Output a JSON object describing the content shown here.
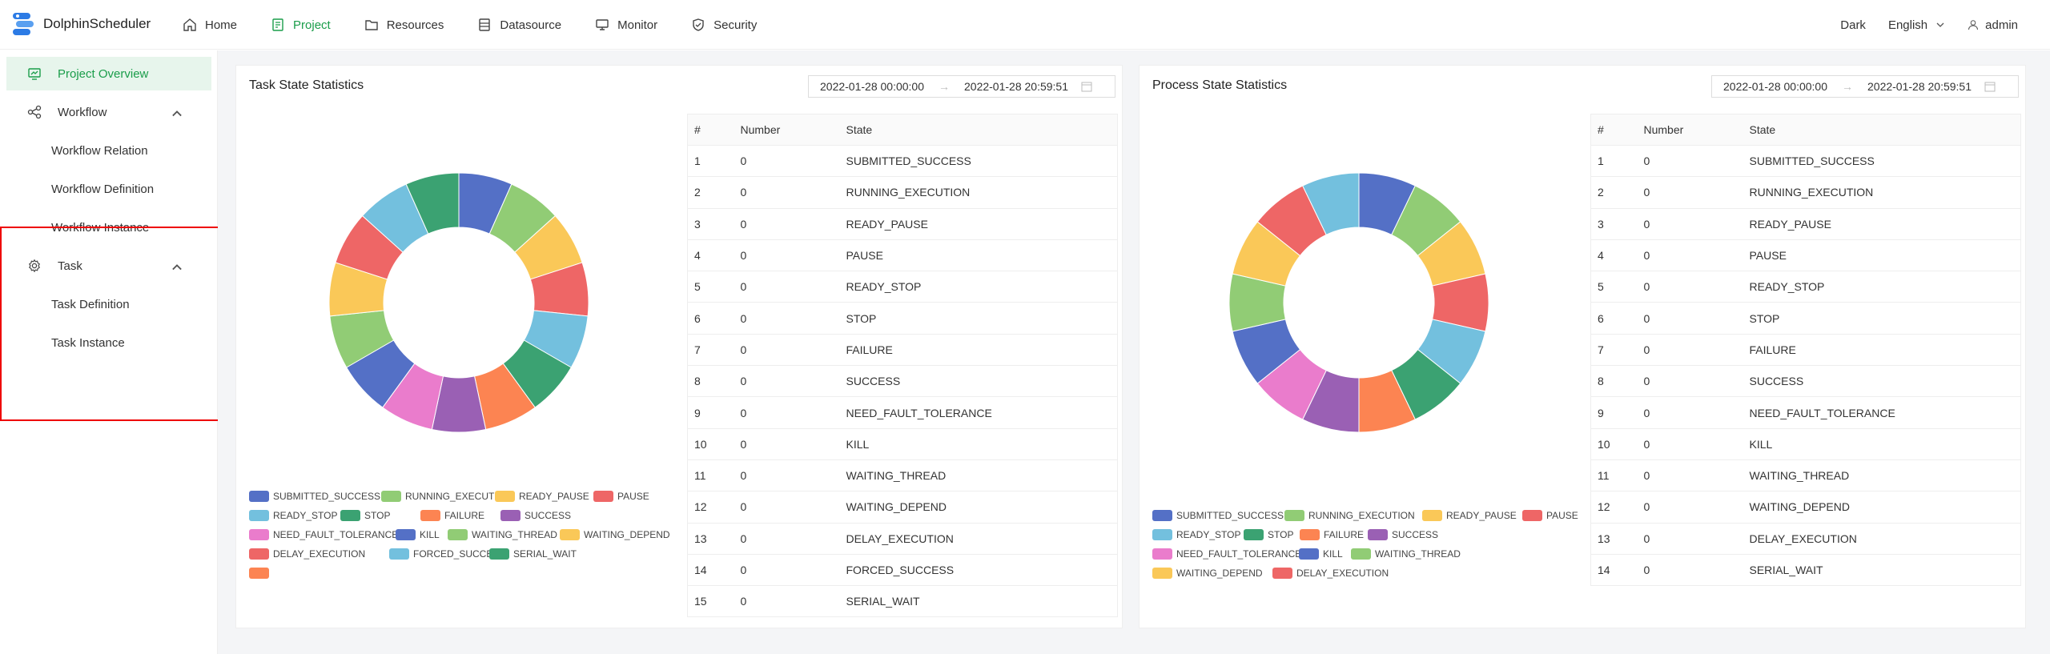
{
  "app": {
    "name": "DolphinScheduler"
  },
  "nav": [
    {
      "label": "Home",
      "icon": "home-icon",
      "active": false
    },
    {
      "label": "Project",
      "icon": "project-icon",
      "active": true
    },
    {
      "label": "Resources",
      "icon": "folder-icon",
      "active": false
    },
    {
      "label": "Datasource",
      "icon": "database-icon",
      "active": false
    },
    {
      "label": "Monitor",
      "icon": "monitor-icon",
      "active": false
    },
    {
      "label": "Security",
      "icon": "shield-icon",
      "active": false
    }
  ],
  "header_right": {
    "theme": "Dark",
    "language": "English",
    "user": "admin"
  },
  "sidebar": {
    "project_overview": "Project Overview",
    "workflow": "Workflow",
    "workflow_relation": "Workflow Relation",
    "workflow_definition": "Workflow Definition",
    "workflow_instance": "Workflow Instance",
    "task": "Task",
    "task_definition": "Task Definition",
    "task_instance": "Task Instance"
  },
  "task_card": {
    "title": "Task State Statistics",
    "start": "2022-01-28 00:00:00",
    "end": "2022-01-28 20:59:51",
    "columns": [
      "#",
      "Number",
      "State"
    ],
    "rows": [
      [
        "1",
        "0",
        "SUBMITTED_SUCCESS"
      ],
      [
        "2",
        "0",
        "RUNNING_EXECUTION"
      ],
      [
        "3",
        "0",
        "READY_PAUSE"
      ],
      [
        "4",
        "0",
        "PAUSE"
      ],
      [
        "5",
        "0",
        "READY_STOP"
      ],
      [
        "6",
        "0",
        "STOP"
      ],
      [
        "7",
        "0",
        "FAILURE"
      ],
      [
        "8",
        "0",
        "SUCCESS"
      ],
      [
        "9",
        "0",
        "NEED_FAULT_TOLERANCE"
      ],
      [
        "10",
        "0",
        "KILL"
      ],
      [
        "11",
        "0",
        "WAITING_THREAD"
      ],
      [
        "12",
        "0",
        "WAITING_DEPEND"
      ],
      [
        "13",
        "0",
        "DELAY_EXECUTION"
      ],
      [
        "14",
        "0",
        "FORCED_SUCCESS"
      ],
      [
        "15",
        "0",
        "SERIAL_WAIT"
      ]
    ],
    "legend": [
      "SUBMITTED_SUCCESS",
      "RUNNING_EXECUTION",
      "READY_PAUSE",
      "PAUSE",
      "READY_STOP",
      "STOP",
      "FAILURE",
      "SUCCESS",
      "NEED_FAULT_TOLERANCE",
      "KILL",
      "WAITING_THREAD",
      "WAITING_DEPEND",
      "DELAY_EXECUTION",
      "FORCED_SUCCESS",
      "SERIAL_WAIT"
    ]
  },
  "process_card": {
    "title": "Process State Statistics",
    "start": "2022-01-28 00:00:00",
    "end": "2022-01-28 20:59:51",
    "columns": [
      "#",
      "Number",
      "State"
    ],
    "rows": [
      [
        "1",
        "0",
        "SUBMITTED_SUCCESS"
      ],
      [
        "2",
        "0",
        "RUNNING_EXECUTION"
      ],
      [
        "3",
        "0",
        "READY_PAUSE"
      ],
      [
        "4",
        "0",
        "PAUSE"
      ],
      [
        "5",
        "0",
        "READY_STOP"
      ],
      [
        "6",
        "0",
        "STOP"
      ],
      [
        "7",
        "0",
        "FAILURE"
      ],
      [
        "8",
        "0",
        "SUCCESS"
      ],
      [
        "9",
        "0",
        "NEED_FAULT_TOLERANCE"
      ],
      [
        "10",
        "0",
        "KILL"
      ],
      [
        "11",
        "0",
        "WAITING_THREAD"
      ],
      [
        "12",
        "0",
        "WAITING_DEPEND"
      ],
      [
        "13",
        "0",
        "DELAY_EXECUTION"
      ],
      [
        "14",
        "0",
        "SERIAL_WAIT"
      ]
    ],
    "legend": [
      "SUBMITTED_SUCCESS",
      "RUNNING_EXECUTION",
      "READY_PAUSE",
      "PAUSE",
      "READY_STOP",
      "STOP",
      "FAILURE",
      "SUCCESS",
      "NEED_FAULT_TOLERANCE",
      "KILL",
      "WAITING_THREAD",
      "WAITING_DEPEND",
      "DELAY_EXECUTION",
      "SERIAL_WAIT"
    ]
  },
  "palette": [
    "#5470c6",
    "#91cc75",
    "#fac858",
    "#ee6666",
    "#73c0de",
    "#3ba272",
    "#fc8452",
    "#9a60b4",
    "#ea7ccc"
  ],
  "colors": {
    "accent": "#1a9d4a",
    "highlight": "#ee0000"
  }
}
